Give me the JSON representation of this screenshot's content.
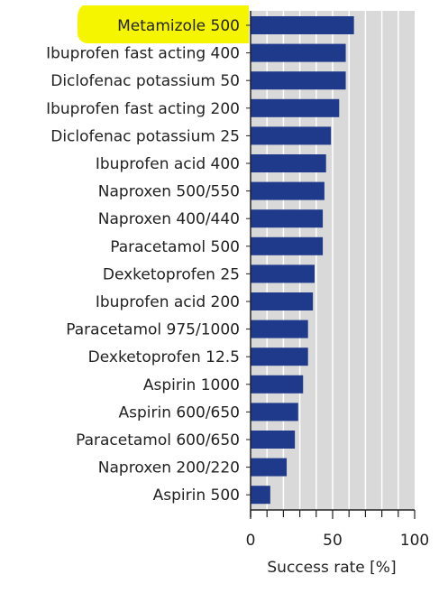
{
  "chart_data": {
    "type": "bar",
    "orientation": "horizontal",
    "categories": [
      "Metamizole 500",
      "Ibuprofen fast acting 400",
      "Diclofenac potassium 50",
      "Ibuprofen fast acting 200",
      "Diclofenac potassium 25",
      "Ibuprofen acid 400",
      "Naproxen 500/550",
      "Naproxen 400/440",
      "Paracetamol 500",
      "Dexketoprofen 25",
      "Ibuprofen acid 200",
      "Paracetamol 975/1000",
      "Dexketoprofen 12.5",
      "Aspirin 1000",
      "Aspirin 600/650",
      "Paracetamol 600/650",
      "Naproxen 200/220",
      "Aspirin 500"
    ],
    "values": [
      63,
      58,
      58,
      54,
      49,
      46,
      45,
      44,
      44,
      39,
      38,
      35,
      35,
      32,
      29,
      27,
      22,
      12
    ],
    "xlabel": "Success rate [%]",
    "xlim": [
      0,
      100
    ],
    "xticks": [
      0,
      50,
      100
    ],
    "highlighted_category": "Metamizole 500",
    "grid": true,
    "colors": {
      "bar": "#1f3a8a",
      "plot_background": "#d9d9d9",
      "gridline": "#ffffff",
      "highlight": "#f5f500"
    }
  }
}
